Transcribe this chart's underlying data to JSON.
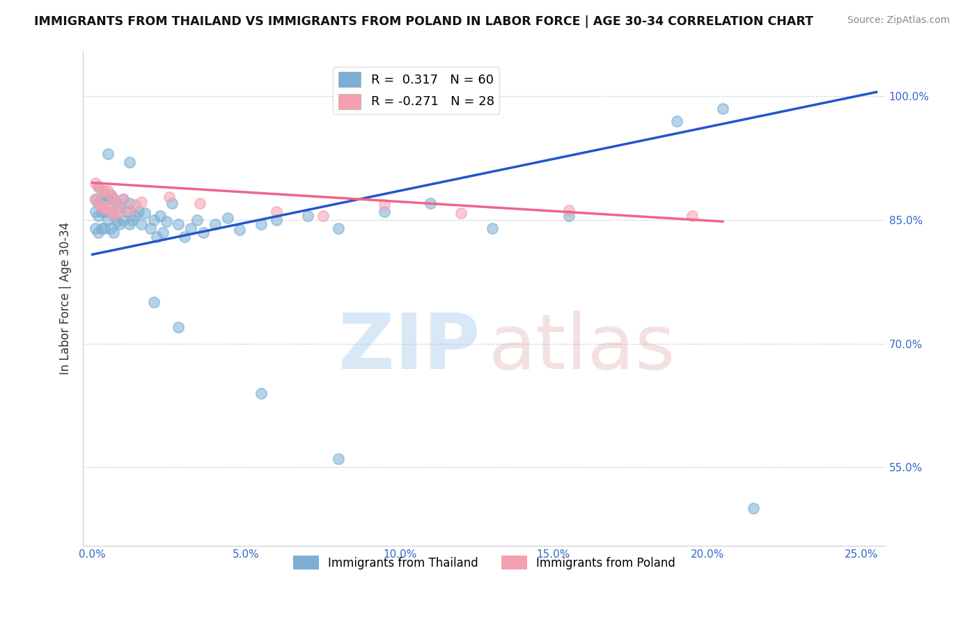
{
  "title": "IMMIGRANTS FROM THAILAND VS IMMIGRANTS FROM POLAND IN LABOR FORCE | AGE 30-34 CORRELATION CHART",
  "source": "Source: ZipAtlas.com",
  "ylabel": "In Labor Force | Age 30-34",
  "xlim": [
    -0.003,
    0.258
  ],
  "ylim": [
    0.455,
    1.055
  ],
  "xticks": [
    0.0,
    0.05,
    0.1,
    0.15,
    0.2,
    0.25
  ],
  "xticklabels": [
    "0.0%",
    "5.0%",
    "10.0%",
    "15.0%",
    "20.0%",
    "25.0%"
  ],
  "yticks": [
    0.55,
    0.7,
    0.85,
    1.0
  ],
  "yticklabels": [
    "55.0%",
    "70.0%",
    "85.0%",
    "100.0%"
  ],
  "thailand_color": "#7bafd4",
  "poland_color": "#f4a0b0",
  "trend_blue": "#2255cc",
  "trend_pink": "#ee6688",
  "legend_r1_label": "R =  0.317   N = 60",
  "legend_r2_label": "R = -0.271   N = 28",
  "legend_bottom_1": "Immigrants from Thailand",
  "legend_bottom_2": "Immigrants from Poland",
  "background_color": "#ffffff",
  "grid_color": "#bbbbbb",
  "thai_trend_x0": 0.0,
  "thai_trend_y0": 0.808,
  "thai_trend_x1": 0.255,
  "thai_trend_y1": 1.005,
  "pol_trend_x0": 0.0,
  "pol_trend_y0": 0.895,
  "pol_trend_x1": 0.205,
  "pol_trend_y1": 0.848,
  "thai_x": [
    0.001,
    0.001,
    0.001,
    0.002,
    0.002,
    0.002,
    0.002,
    0.003,
    0.003,
    0.003,
    0.004,
    0.004,
    0.004,
    0.005,
    0.005,
    0.006,
    0.006,
    0.006,
    0.007,
    0.007,
    0.007,
    0.008,
    0.008,
    0.009,
    0.009,
    0.01,
    0.01,
    0.011,
    0.012,
    0.012,
    0.013,
    0.014,
    0.015,
    0.016,
    0.017,
    0.019,
    0.02,
    0.021,
    0.022,
    0.023,
    0.024,
    0.026,
    0.028,
    0.03,
    0.032,
    0.034,
    0.036,
    0.04,
    0.044,
    0.048,
    0.055,
    0.06,
    0.07,
    0.08,
    0.095,
    0.11,
    0.13,
    0.155,
    0.19,
    0.205
  ],
  "thai_y": [
    0.875,
    0.86,
    0.84,
    0.89,
    0.87,
    0.855,
    0.835,
    0.875,
    0.86,
    0.84,
    0.88,
    0.86,
    0.84,
    0.875,
    0.85,
    0.88,
    0.86,
    0.84,
    0.875,
    0.855,
    0.835,
    0.87,
    0.848,
    0.865,
    0.845,
    0.875,
    0.85,
    0.86,
    0.87,
    0.845,
    0.85,
    0.855,
    0.86,
    0.845,
    0.858,
    0.84,
    0.85,
    0.83,
    0.855,
    0.835,
    0.848,
    0.87,
    0.845,
    0.83,
    0.84,
    0.85,
    0.835,
    0.845,
    0.852,
    0.838,
    0.845,
    0.85,
    0.855,
    0.84,
    0.86,
    0.87,
    0.84,
    0.855,
    0.97,
    0.985
  ],
  "thai_x_outliers": [
    0.005,
    0.012,
    0.02,
    0.028,
    0.055,
    0.08,
    0.215
  ],
  "thai_y_outliers": [
    0.93,
    0.92,
    0.75,
    0.72,
    0.64,
    0.56,
    0.5
  ],
  "pol_x": [
    0.001,
    0.001,
    0.002,
    0.002,
    0.003,
    0.003,
    0.004,
    0.004,
    0.005,
    0.005,
    0.006,
    0.006,
    0.007,
    0.007,
    0.008,
    0.009,
    0.01,
    0.012,
    0.014,
    0.016,
    0.025,
    0.035,
    0.06,
    0.075,
    0.095,
    0.12,
    0.155,
    0.195
  ],
  "pol_y": [
    0.895,
    0.875,
    0.89,
    0.87,
    0.885,
    0.865,
    0.885,
    0.865,
    0.885,
    0.865,
    0.88,
    0.86,
    0.876,
    0.856,
    0.87,
    0.86,
    0.875,
    0.862,
    0.868,
    0.872,
    0.878,
    0.87,
    0.86,
    0.855,
    0.868,
    0.858,
    0.862,
    0.855
  ]
}
